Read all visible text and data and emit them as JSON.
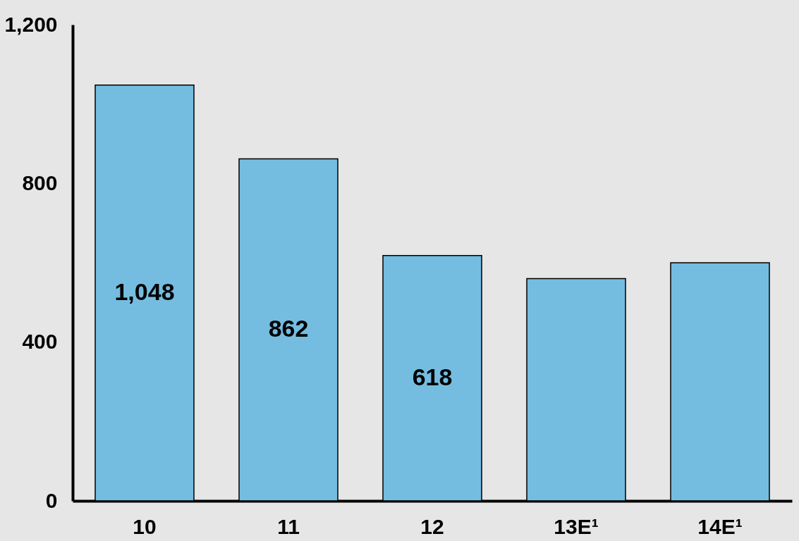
{
  "chart_data": {
    "type": "bar",
    "categories": [
      "10",
      "11",
      "12",
      "13E¹",
      "14E¹"
    ],
    "values": [
      1048,
      862,
      618,
      560,
      600
    ],
    "value_labels": [
      "1,048",
      "862",
      "618",
      null,
      null
    ],
    "color": "#74bde0",
    "ylim": [
      0,
      1200
    ],
    "yticks": [
      0,
      400,
      800,
      {
        "value": 1200,
        "label": "1,200"
      }
    ],
    "grid": false
  }
}
